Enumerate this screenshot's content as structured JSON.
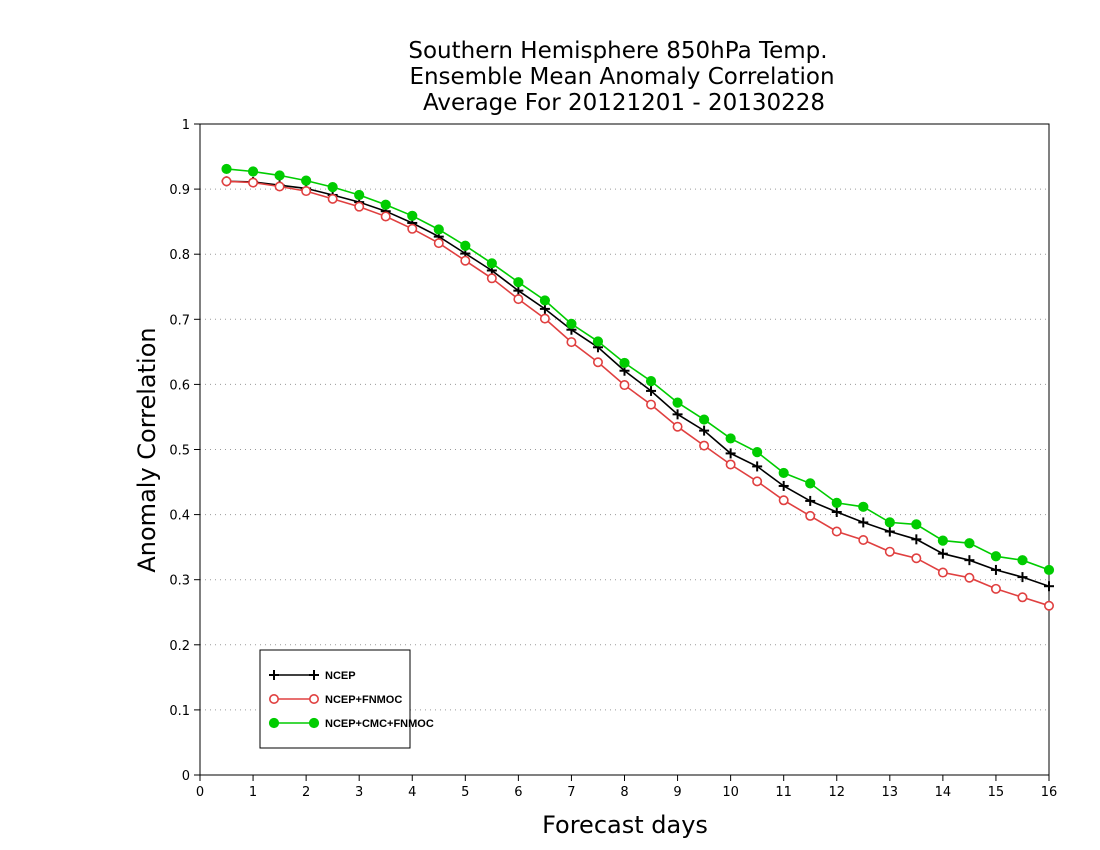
{
  "chart_data": {
    "type": "line",
    "title_lines": [
      "Southern Hemisphere 850hPa Temp.",
      "Ensemble Mean Anomaly Correlation",
      "Average For 20121201 - 20130228"
    ],
    "xlabel": "Forecast days",
    "ylabel": "Anomaly Correlation",
    "xlim": [
      0,
      16
    ],
    "ylim": [
      0,
      1
    ],
    "x_ticks": [
      "0",
      "1",
      "2",
      "3",
      "4",
      "5",
      "6",
      "7",
      "8",
      "9",
      "10",
      "11",
      "12",
      "13",
      "14",
      "15",
      "16"
    ],
    "y_ticks": [
      "0",
      "0.1",
      "0.2",
      "0.3",
      "0.4",
      "0.5",
      "0.6",
      "0.7",
      "0.8",
      "0.9",
      "1"
    ],
    "grid": "horizontal dotted",
    "legend_position": "bottom-left",
    "x": [
      0.5,
      1,
      1.5,
      2,
      2.5,
      3,
      3.5,
      4,
      4.5,
      5,
      5.5,
      6,
      6.5,
      7,
      7.5,
      8,
      8.5,
      9,
      9.5,
      10,
      10.5,
      11,
      11.5,
      12,
      12.5,
      13,
      13.5,
      14,
      14.5,
      15,
      15.5,
      16
    ],
    "series": [
      {
        "name": "NCEP",
        "color": "#000000",
        "marker": "plus",
        "values": [
          0.912,
          0.911,
          0.906,
          0.901,
          0.891,
          0.88,
          0.866,
          0.848,
          0.827,
          0.801,
          0.775,
          0.744,
          0.716,
          0.684,
          0.657,
          0.621,
          0.59,
          0.554,
          0.529,
          0.494,
          0.474,
          0.444,
          0.421,
          0.404,
          0.388,
          0.374,
          0.362,
          0.34,
          0.33,
          0.315,
          0.304,
          0.29
        ]
      },
      {
        "name": "NCEP+FNMOC",
        "color": "#e04040",
        "marker": "open-circle",
        "values": [
          0.912,
          0.91,
          0.904,
          0.897,
          0.885,
          0.873,
          0.858,
          0.839,
          0.817,
          0.79,
          0.763,
          0.731,
          0.701,
          0.665,
          0.634,
          0.599,
          0.569,
          0.535,
          0.506,
          0.477,
          0.451,
          0.422,
          0.398,
          0.374,
          0.361,
          0.343,
          0.333,
          0.311,
          0.303,
          0.286,
          0.273,
          0.26
        ]
      },
      {
        "name": "NCEP+CMC+FNMOC",
        "color": "#00cc00",
        "marker": "filled-circle",
        "values": [
          0.931,
          0.927,
          0.921,
          0.913,
          0.903,
          0.891,
          0.876,
          0.859,
          0.838,
          0.813,
          0.786,
          0.757,
          0.729,
          0.693,
          0.666,
          0.633,
          0.605,
          0.572,
          0.546,
          0.517,
          0.496,
          0.464,
          0.448,
          0.418,
          0.412,
          0.388,
          0.385,
          0.36,
          0.356,
          0.336,
          0.33,
          0.315
        ]
      }
    ]
  }
}
